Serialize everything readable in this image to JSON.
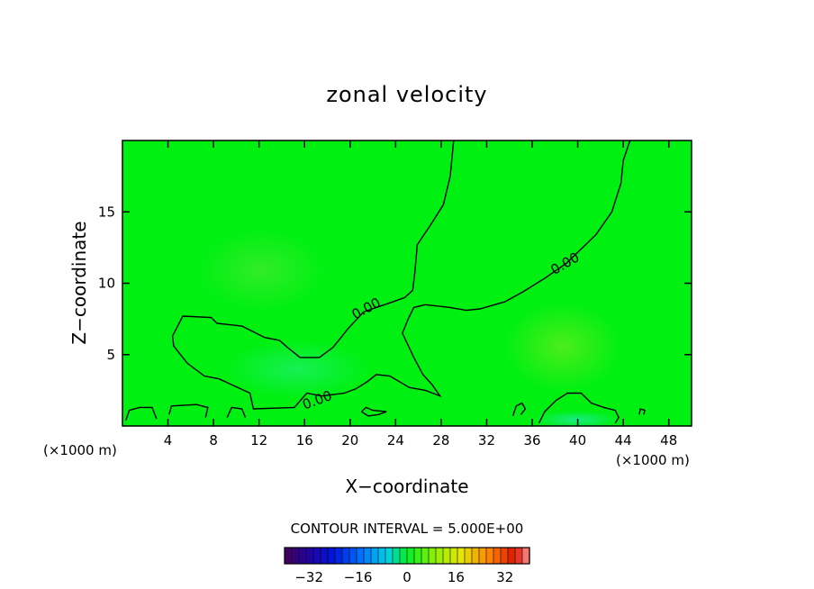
{
  "chart_data": {
    "type": "heatmap",
    "title": "zonal velocity",
    "xlabel": "X−coordinate",
    "ylabel": "Z−coordinate",
    "x_unit_left": "(×1000 m)",
    "x_unit_right": "(×1000 m)",
    "xlim": [
      0,
      50
    ],
    "ylim": [
      0,
      20
    ],
    "x_ticks": [
      4,
      8,
      12,
      16,
      20,
      24,
      28,
      32,
      36,
      40,
      44,
      48
    ],
    "y_ticks": [
      5,
      10,
      15
    ],
    "contour_interval_text": "CONTOUR INTERVAL = 5.000E+00",
    "contour_labels": [
      "0.00",
      "0.00",
      "0.00"
    ],
    "colorbar": {
      "min": -40,
      "max": 40,
      "ticks": [
        -32,
        -16,
        0,
        16,
        32
      ],
      "tick_labels": [
        "−32",
        "−16",
        "0",
        "16",
        "32"
      ]
    },
    "background_color": "#00f012",
    "zero_contours": [
      [
        [
          29.1,
          20
        ],
        [
          28.8,
          17.5
        ],
        [
          28.2,
          15.5
        ],
        [
          27,
          14
        ],
        [
          25.9,
          12.7
        ],
        [
          25.7,
          10.8
        ],
        [
          25.5,
          9.5
        ],
        [
          24.8,
          9
        ],
        [
          23.4,
          8.6
        ],
        [
          21.2,
          8
        ],
        [
          19.8,
          6.8
        ],
        [
          18.5,
          5.5
        ],
        [
          17.3,
          4.8
        ],
        [
          15.6,
          4.8
        ],
        [
          14.5,
          5.5
        ],
        [
          13.8,
          6
        ],
        [
          12.5,
          6.2
        ],
        [
          10.5,
          7
        ],
        [
          8.3,
          7.2
        ],
        [
          7.8,
          7.6
        ],
        [
          5.3,
          7.7
        ],
        [
          4.4,
          6.3
        ],
        [
          4.5,
          5.6
        ],
        [
          5.7,
          4.4
        ],
        [
          7.2,
          3.5
        ],
        [
          8.5,
          3.3
        ],
        [
          11.2,
          2.3
        ],
        [
          11.5,
          1.2
        ],
        [
          15.1,
          1.3
        ],
        [
          16.2,
          2.3
        ],
        [
          17.5,
          2.1
        ],
        [
          19.5,
          2.3
        ],
        [
          20.5,
          2.6
        ],
        [
          21.5,
          3.1
        ],
        [
          22.3,
          3.6
        ],
        [
          23.5,
          3.5
        ],
        [
          25.2,
          2.7
        ],
        [
          26.6,
          2.5
        ],
        [
          27.9,
          2.1
        ],
        [
          27.2,
          2.9
        ],
        [
          26.4,
          3.6
        ],
        [
          25.6,
          4.8
        ],
        [
          24.6,
          6.5
        ],
        [
          25.1,
          7.5
        ],
        [
          25.6,
          8.3
        ],
        [
          26.6,
          8.5
        ],
        [
          28.8,
          8.3
        ],
        [
          30.2,
          8.1
        ],
        [
          31.4,
          8.2
        ],
        [
          33.6,
          8.7
        ],
        [
          35.2,
          9.4
        ],
        [
          37.2,
          10.4
        ],
        [
          39,
          11.4
        ],
        [
          40.3,
          12.4
        ],
        [
          41.6,
          13.4
        ],
        [
          43,
          15
        ],
        [
          43.8,
          17
        ],
        [
          44,
          18.6
        ],
        [
          44.6,
          20
        ]
      ],
      [
        [
          0.3,
          0.4
        ],
        [
          0.6,
          1.1
        ],
        [
          1.5,
          1.3
        ],
        [
          2.6,
          1.3
        ],
        [
          3,
          0.5
        ]
      ],
      [
        [
          4.1,
          0.8
        ],
        [
          4.3,
          1.4
        ],
        [
          6.5,
          1.5
        ],
        [
          7.5,
          1.3
        ],
        [
          7.3,
          0.6
        ]
      ],
      [
        [
          9.2,
          0.6
        ],
        [
          9.6,
          1.3
        ],
        [
          10.5,
          1.2
        ],
        [
          10.8,
          0.6
        ]
      ],
      [
        [
          34.3,
          0.7
        ],
        [
          34.6,
          1.4
        ],
        [
          35.1,
          1.6
        ],
        [
          35.4,
          1.2
        ],
        [
          35,
          0.8
        ]
      ],
      [
        [
          36.6,
          0.2
        ],
        [
          37.1,
          1
        ],
        [
          38.1,
          1.8
        ],
        [
          39.1,
          2.3
        ],
        [
          40.3,
          2.3
        ],
        [
          41.2,
          1.6
        ],
        [
          42.3,
          1.3
        ],
        [
          43.3,
          1.1
        ],
        [
          43.6,
          0.6
        ],
        [
          43.3,
          0.2
        ]
      ],
      [
        [
          45.4,
          0.8
        ],
        [
          45.5,
          1.2
        ],
        [
          45.9,
          1.1
        ],
        [
          45.8,
          0.8
        ]
      ],
      [
        [
          21,
          1
        ],
        [
          21.4,
          1.3
        ],
        [
          22,
          1.1
        ],
        [
          23.2,
          1
        ],
        [
          22.5,
          0.8
        ],
        [
          21.6,
          0.7
        ],
        [
          21,
          1
        ]
      ]
    ]
  }
}
